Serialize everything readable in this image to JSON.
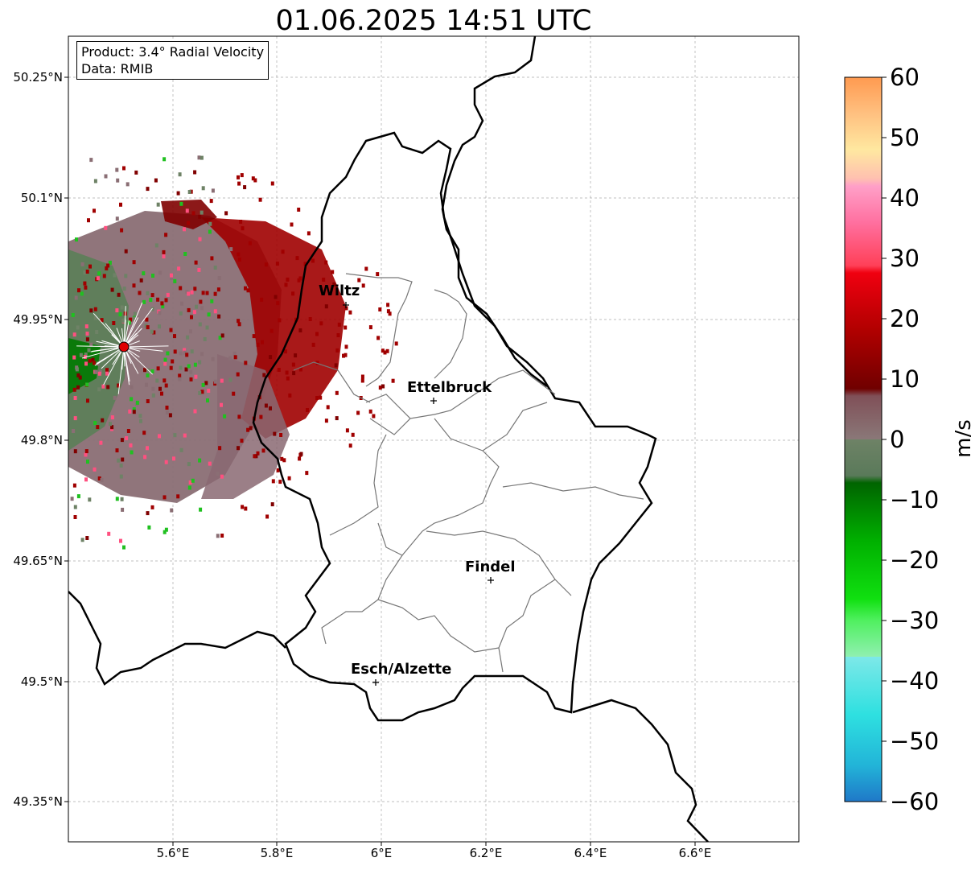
{
  "title": "01.06.2025 14:51 UTC",
  "info_box": {
    "product": "Product: 3.4° Radial Velocity",
    "data_source": "Data: RMIB"
  },
  "axes": {
    "lat_ticks": [
      "50.25°N",
      "50.1°N",
      "49.95°N",
      "49.8°N",
      "49.65°N",
      "49.5°N",
      "49.35°N"
    ],
    "lon_ticks": [
      "5.6°E",
      "5.8°E",
      "6°E",
      "6.2°E",
      "6.4°E",
      "6.6°E"
    ]
  },
  "colorbar": {
    "label": "m/s",
    "ticks": [
      "60",
      "50",
      "40",
      "30",
      "20",
      "10",
      "0",
      "−10",
      "−20",
      "−30",
      "−40",
      "−50",
      "−60"
    ],
    "range": [
      -60,
      60
    ]
  },
  "cities": [
    {
      "name": "Wiltz"
    },
    {
      "name": "Ettelbruck"
    },
    {
      "name": "Findel"
    },
    {
      "name": "Esch/Alzette"
    }
  ],
  "colors": {
    "inbound_green": "#0a7a0a",
    "outbound_red": "#a00000",
    "near_zero": "#8a6e74",
    "radar_marker": "#e00000"
  }
}
